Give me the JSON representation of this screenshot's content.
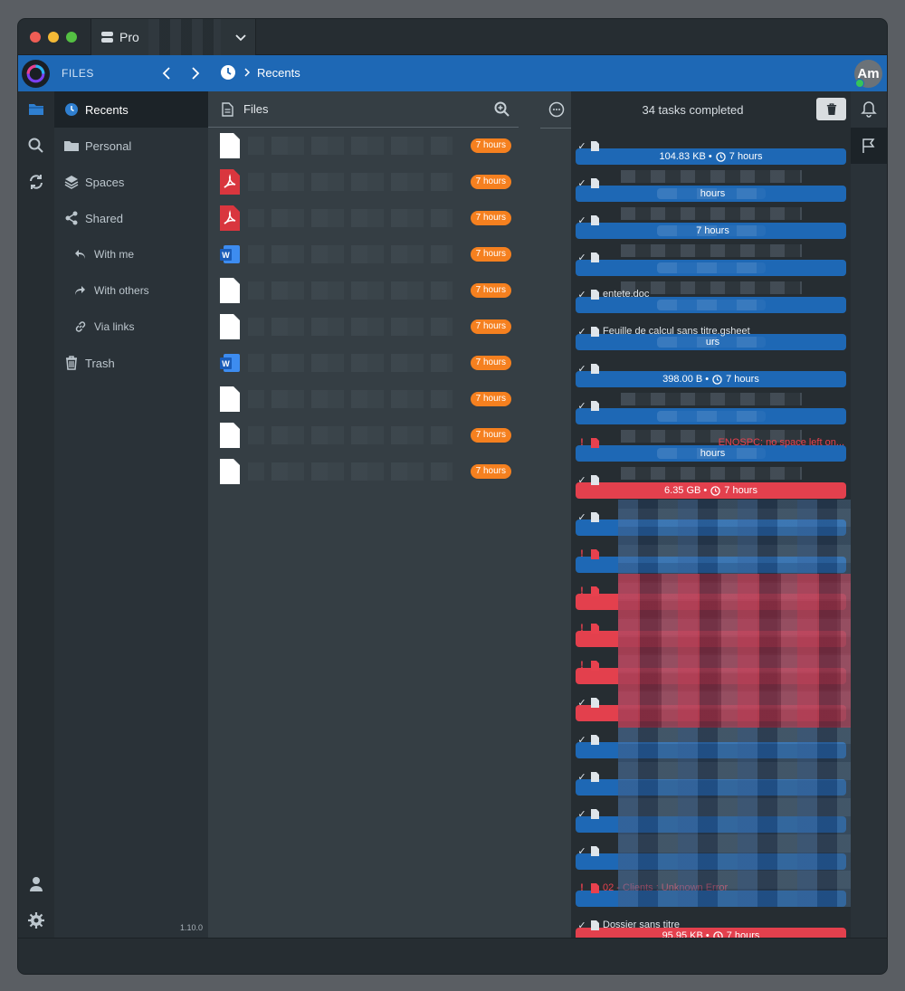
{
  "titlebar": {
    "account_name": "Pro"
  },
  "header": {
    "section_label": "FILES",
    "breadcrumb_current": "Recents",
    "avatar_initials": "Am"
  },
  "sidebar": {
    "items": [
      {
        "label": "Recents"
      },
      {
        "label": "Personal"
      },
      {
        "label": "Spaces"
      },
      {
        "label": "Shared"
      },
      {
        "label": "With me"
      },
      {
        "label": "With others"
      },
      {
        "label": "Via links"
      },
      {
        "label": "Trash"
      }
    ],
    "version": "1.10.0"
  },
  "files": {
    "title": "Files",
    "rows": [
      {
        "type": "blank",
        "name": "",
        "age": "7 hours"
      },
      {
        "type": "pdf",
        "name": "",
        "age": "7 hours"
      },
      {
        "type": "pdf",
        "name": "",
        "age": "7 hours"
      },
      {
        "type": "word",
        "name": "",
        "age": "7 hours"
      },
      {
        "type": "blank",
        "name": "",
        "age": "7 hours"
      },
      {
        "type": "blank",
        "name": "",
        "age": "7 hours"
      },
      {
        "type": "word",
        "name": "",
        "age": "7 hours"
      },
      {
        "type": "blank",
        "name": "",
        "age": "7 hours"
      },
      {
        "type": "blank",
        "name": "",
        "age": "7 hours"
      },
      {
        "type": "blank",
        "name": "",
        "age": "7 hours"
      }
    ]
  },
  "tasks": {
    "title": "34 tasks completed",
    "items": [
      {
        "status": "ok",
        "name": "",
        "info": "104.83 KB • ",
        "time": "7 hours"
      },
      {
        "status": "ok",
        "name": "",
        "info": "",
        "time": "hours"
      },
      {
        "status": "ok",
        "name": "",
        "info": "",
        "time": "7 hours"
      },
      {
        "status": "ok",
        "name": "",
        "info": "",
        "time": ""
      },
      {
        "status": "ok",
        "name": "",
        "info": "",
        "time": ""
      },
      {
        "status": "ok",
        "name": "entete.doc",
        "info": "",
        "time": "urs"
      },
      {
        "status": "ok",
        "name": "Feuille de calcul sans titre.gsheet",
        "info": "398.00 B • ",
        "time": "7 hours"
      },
      {
        "status": "ok",
        "name": "",
        "info": "",
        "time": ""
      },
      {
        "status": "ok",
        "name": "",
        "info": "",
        "time": "hours"
      },
      {
        "status": "err",
        "name": "",
        "error": "ENOSPC: no space left on...",
        "info": "6.35 GB • ",
        "time": "7 hours"
      },
      {
        "status": "ok",
        "name": ""
      },
      {
        "status": "ok",
        "name": ""
      },
      {
        "status": "err",
        "name": ""
      },
      {
        "status": "err",
        "name": ""
      },
      {
        "status": "err",
        "name": ""
      },
      {
        "status": "err",
        "name": ""
      },
      {
        "status": "ok",
        "name": ""
      },
      {
        "status": "ok",
        "name": ""
      },
      {
        "status": "ok",
        "name": ""
      },
      {
        "status": "ok",
        "name": ""
      },
      {
        "status": "ok",
        "name": ""
      },
      {
        "status": "err",
        "name": "02 - Clients : Unknown Error",
        "info": "95.95 KB • ",
        "time": "7 hours"
      },
      {
        "status": "ok",
        "name": "Dossier sans titre"
      }
    ]
  },
  "colors": {
    "accent": "#1e68b5",
    "badge": "#f5801f",
    "error": "#e3404d"
  }
}
